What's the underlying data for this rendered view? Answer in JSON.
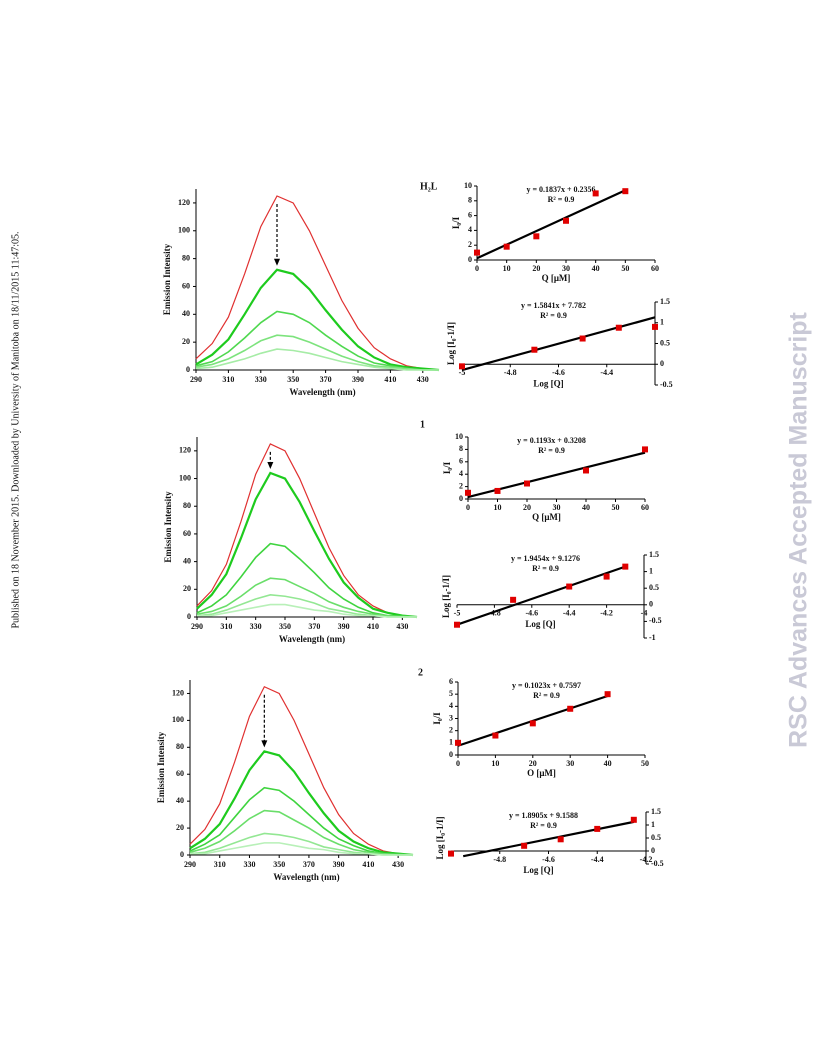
{
  "side_note": "Published on 18 November 2015. Downloaded by University of Manitoba on 18/11/2015 11:47:05.",
  "watermark": "RSC Advances Accepted Manuscript",
  "chart_data": [
    {
      "type": "line",
      "title": "H₂L",
      "xlabel": "Wavelength (nm)",
      "ylabel": "Emission Intensity",
      "x": [
        290,
        300,
        310,
        320,
        330,
        340,
        350,
        360,
        370,
        380,
        390,
        400,
        410,
        420,
        430,
        440
      ],
      "xlim": [
        290,
        440
      ],
      "ylim": [
        0,
        130
      ],
      "xticks": [
        290,
        310,
        330,
        350,
        370,
        390,
        410,
        430
      ],
      "yticks": [
        0,
        20,
        40,
        60,
        80,
        100,
        120
      ],
      "series": [
        {
          "color": "#e03030",
          "values": [
            8,
            19,
            38,
            69,
            103,
            125,
            120,
            100,
            75,
            50,
            30,
            16,
            8,
            3,
            1,
            0
          ]
        },
        {
          "color": "#1ecb1e",
          "values": [
            4,
            11,
            22,
            40,
            59,
            72,
            69,
            58,
            43,
            29,
            17,
            9,
            4,
            2,
            1,
            0
          ]
        },
        {
          "color": "#4fd84f",
          "values": [
            3,
            6,
            13,
            23,
            34,
            42,
            40,
            34,
            25,
            17,
            10,
            5,
            3,
            1,
            0,
            0
          ]
        },
        {
          "color": "#7de37d",
          "values": [
            2,
            4,
            8,
            14,
            21,
            25,
            24,
            20,
            15,
            10,
            6,
            3,
            2,
            1,
            0,
            0
          ]
        },
        {
          "color": "#a6eca6",
          "values": [
            1,
            2,
            5,
            8,
            12,
            15,
            14,
            12,
            9,
            6,
            4,
            2,
            1,
            0,
            0,
            0
          ]
        }
      ]
    },
    {
      "type": "scatter",
      "xlabel": "Q [μM]",
      "ylabel": "I₀/I",
      "annotations": [
        "y = 0.1837x + 0.2356",
        "R² = 0.9"
      ],
      "x": [
        0,
        10,
        20,
        30,
        40,
        50
      ],
      "values": [
        1,
        1.8,
        3.2,
        5.3,
        9,
        9.3
      ],
      "color": "#e00000",
      "fit_line": {
        "x": [
          0,
          50
        ],
        "y": [
          0.24,
          9.42
        ]
      },
      "xlim": [
        0,
        60
      ],
      "ylim": [
        0,
        10
      ],
      "xticks": [
        0,
        10,
        20,
        30,
        40,
        50,
        60
      ],
      "yticks": [
        0,
        2,
        4,
        6,
        8,
        10
      ],
      "yaxis_position": "left"
    },
    {
      "type": "scatter",
      "xlabel": "Log [Q]",
      "ylabel": "Log [I₀-1/I]",
      "annotations": [
        "y = 1.5841x + 7.782",
        "R² = 0.9"
      ],
      "x": [
        -5,
        -4.7,
        -4.5,
        -4.35,
        -4.2
      ],
      "values": [
        -0.05,
        0.35,
        0.62,
        0.88,
        0.9
      ],
      "color": "#e00000",
      "fit_line": {
        "x": [
          -5,
          -4.2
        ],
        "y": [
          -0.14,
          1.13
        ]
      },
      "xlim": [
        -5,
        -4.2
      ],
      "ylim": [
        -0.5,
        1.5
      ],
      "xticks": [
        -5,
        -4.8,
        -4.6,
        -4.4
      ],
      "yticks": [
        -0.5,
        0,
        0.5,
        1,
        1.5
      ],
      "yaxis_position": "right"
    },
    {
      "type": "line",
      "title": "1",
      "xlabel": "Wavelength (nm)",
      "ylabel": "Emission Intensity",
      "x": [
        290,
        300,
        310,
        320,
        330,
        340,
        350,
        360,
        370,
        380,
        390,
        400,
        410,
        420,
        430,
        440
      ],
      "xlim": [
        290,
        440
      ],
      "ylim": [
        0,
        130
      ],
      "xticks": [
        290,
        310,
        330,
        350,
        370,
        390,
        410,
        430
      ],
      "yticks": [
        0,
        20,
        40,
        60,
        80,
        100,
        120
      ],
      "series": [
        {
          "color": "#e03030",
          "values": [
            8,
            19,
            38,
            69,
            103,
            125,
            120,
            100,
            75,
            50,
            30,
            16,
            8,
            3,
            1,
            0
          ]
        },
        {
          "color": "#1ecb1e",
          "values": [
            6,
            16,
            31,
            57,
            85,
            104,
            100,
            83,
            62,
            42,
            25,
            14,
            6,
            3,
            1,
            0
          ]
        },
        {
          "color": "#3fd43f",
          "values": [
            3,
            8,
            16,
            29,
            43,
            53,
            51,
            42,
            32,
            21,
            13,
            7,
            3,
            1,
            1,
            0
          ]
        },
        {
          "color": "#6ade6a",
          "values": [
            2,
            4,
            8,
            15,
            23,
            28,
            27,
            22,
            17,
            11,
            7,
            4,
            2,
            1,
            0,
            0
          ]
        },
        {
          "color": "#93e793",
          "values": [
            1,
            2,
            5,
            9,
            13,
            16,
            15,
            13,
            10,
            6,
            4,
            2,
            1,
            0,
            0,
            0
          ]
        },
        {
          "color": "#b8f0b8",
          "values": [
            1,
            1,
            3,
            5,
            7,
            9,
            9,
            7,
            5,
            4,
            2,
            1,
            1,
            0,
            0,
            0
          ]
        }
      ]
    },
    {
      "type": "scatter",
      "xlabel": "Q [μM]",
      "ylabel": "I₀/I",
      "annotations": [
        "y = 0.1193x + 0.3208",
        "R² = 0.9"
      ],
      "x": [
        0,
        10,
        20,
        40,
        60
      ],
      "values": [
        1,
        1.3,
        2.5,
        4.6,
        8
      ],
      "color": "#e00000",
      "fit_line": {
        "x": [
          0,
          60
        ],
        "y": [
          0.32,
          7.48
        ]
      },
      "xlim": [
        0,
        60
      ],
      "ylim": [
        0,
        10
      ],
      "xticks": [
        0,
        10,
        20,
        30,
        40,
        50,
        60
      ],
      "yticks": [
        0,
        2,
        4,
        6,
        8,
        10
      ],
      "yaxis_position": "left"
    },
    {
      "type": "scatter",
      "xlabel": "Log [Q]",
      "ylabel": "Log [I₀-1/I]",
      "annotations": [
        "y = 1.9454x + 9.1276",
        "R² = 0.9"
      ],
      "x": [
        -5,
        -4.7,
        -4.4,
        -4.2,
        -4.1
      ],
      "values": [
        -0.6,
        0.15,
        0.55,
        0.85,
        1.15
      ],
      "color": "#e00000",
      "fit_line": {
        "x": [
          -5,
          -4.1
        ],
        "y": [
          -0.6,
          1.15
        ]
      },
      "xlim": [
        -5,
        -4
      ],
      "ylim": [
        -1,
        1.5
      ],
      "xticks": [
        -5,
        -4.8,
        -4.6,
        -4.4,
        -4.2,
        -4
      ],
      "yticks": [
        -1,
        -0.5,
        0,
        0.5,
        1,
        1.5
      ],
      "yaxis_position": "right"
    },
    {
      "type": "line",
      "title": "2",
      "xlabel": "Wavelength (nm)",
      "ylabel": "Emission Intensity",
      "x": [
        290,
        300,
        310,
        320,
        330,
        340,
        350,
        360,
        370,
        380,
        390,
        400,
        410,
        420,
        430,
        440
      ],
      "xlim": [
        290,
        440
      ],
      "ylim": [
        0,
        130
      ],
      "xticks": [
        290,
        310,
        330,
        350,
        370,
        390,
        410,
        430
      ],
      "yticks": [
        0,
        20,
        40,
        60,
        80,
        100,
        120
      ],
      "series": [
        {
          "color": "#e03030",
          "values": [
            8,
            19,
            38,
            69,
            103,
            125,
            120,
            100,
            75,
            50,
            30,
            16,
            8,
            3,
            1,
            0
          ]
        },
        {
          "color": "#1ecb1e",
          "values": [
            5,
            12,
            23,
            42,
            63,
            77,
            74,
            62,
            46,
            31,
            18,
            10,
            5,
            2,
            1,
            0
          ]
        },
        {
          "color": "#3fd43f",
          "values": [
            3,
            8,
            15,
            28,
            41,
            50,
            48,
            40,
            30,
            20,
            12,
            7,
            3,
            1,
            1,
            0
          ]
        },
        {
          "color": "#6ade6a",
          "values": [
            2,
            5,
            10,
            18,
            27,
            33,
            32,
            26,
            20,
            13,
            8,
            4,
            2,
            1,
            0,
            0
          ]
        },
        {
          "color": "#93e793",
          "values": [
            1,
            2,
            5,
            9,
            13,
            16,
            15,
            13,
            10,
            6,
            4,
            2,
            1,
            0,
            0,
            0
          ]
        },
        {
          "color": "#b8f0b8",
          "values": [
            1,
            1,
            3,
            5,
            7,
            9,
            9,
            7,
            5,
            4,
            2,
            1,
            1,
            0,
            0,
            0
          ]
        }
      ]
    },
    {
      "type": "scatter",
      "xlabel": "O [μM]",
      "ylabel": "I₀/I",
      "annotations": [
        "y = 0.1023x + 0.7597",
        "R² = 0.9"
      ],
      "x": [
        0,
        10,
        20,
        30,
        40
      ],
      "values": [
        1,
        1.6,
        2.6,
        3.8,
        5
      ],
      "color": "#e00000",
      "fit_line": {
        "x": [
          0,
          40
        ],
        "y": [
          0.76,
          4.85
        ]
      },
      "xlim": [
        0,
        50
      ],
      "ylim": [
        0,
        6
      ],
      "xticks": [
        0,
        10,
        20,
        30,
        40,
        50
      ],
      "yticks": [
        0,
        1,
        2,
        3,
        4,
        5,
        6
      ],
      "yaxis_position": "left"
    },
    {
      "type": "scatter",
      "xlabel": "Log [Q]",
      "ylabel": "Log [I₀-1/I]",
      "annotations": [
        "y = 1.8905x + 9.1588",
        "R² = 0.9"
      ],
      "x": [
        -5,
        -4.7,
        -4.55,
        -4.4,
        -4.25
      ],
      "values": [
        -0.1,
        0.2,
        0.45,
        0.85,
        1.2
      ],
      "color": "#e00000",
      "fit_line": {
        "x": [
          -4.95,
          -4.25
        ],
        "y": [
          -0.2,
          1.12
        ]
      },
      "xlim": [
        -5,
        -4.2
      ],
      "ylim": [
        -0.5,
        1.5
      ],
      "xticks": [
        -4.8,
        -4.6,
        -4.4,
        -4.2
      ],
      "yticks": [
        -0.5,
        0,
        0.5,
        1,
        1.5
      ],
      "yaxis_position": "right"
    }
  ]
}
